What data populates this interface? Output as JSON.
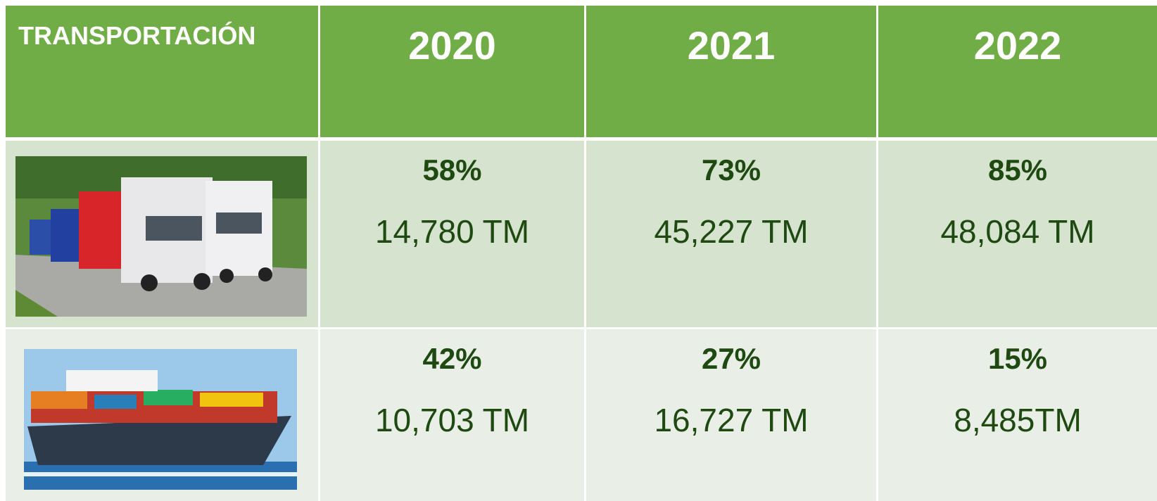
{
  "table": {
    "header": [
      "TRANSPORTACIÓN",
      "2020",
      "2021",
      "2022"
    ],
    "rows": [
      [
        {
          "percent": "58%",
          "amount": "14,780 TM"
        },
        {
          "percent": "73%",
          "amount": "45,227 TM"
        },
        {
          "percent": "85%",
          "amount": "48,084 TM"
        }
      ],
      [
        {
          "percent": "42%",
          "amount": "10,703 TM"
        },
        {
          "percent": "27%",
          "amount": "16,727 TM"
        },
        {
          "percent": "15%",
          "amount": "8,485TM"
        }
      ]
    ]
  }
}
